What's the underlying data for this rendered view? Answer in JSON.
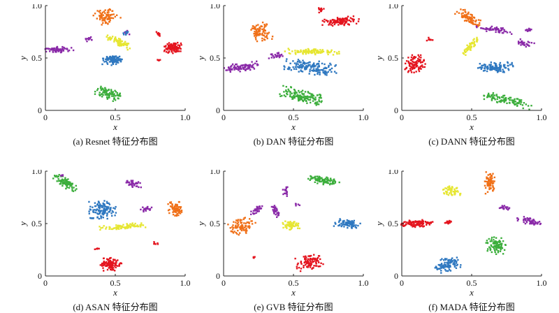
{
  "colors": {
    "red": "#e4141e",
    "orange": "#f07018",
    "purple": "#8a2aa8",
    "blue": "#2f78c0",
    "yellow": "#e6e632",
    "green": "#3cae3c"
  },
  "chart_data": [
    {
      "type": "scatter",
      "title": "",
      "caption": "(a) Resnet 特征分布图",
      "xlabel": "x",
      "ylabel": "y",
      "xlim": [
        0,
        1.0
      ],
      "ylim": [
        0,
        1.0
      ],
      "xticks": [
        "0",
        "0.5",
        "1.0"
      ],
      "yticks": [
        "0",
        "0.5",
        "1.0"
      ],
      "clusters": [
        {
          "color": "red",
          "cx": 0.91,
          "cy": 0.6,
          "rx": 0.06,
          "ry": 0.05,
          "rot": 0,
          "n": 110
        },
        {
          "color": "red",
          "cx": 0.81,
          "cy": 0.73,
          "rx": 0.02,
          "ry": 0.02,
          "rot": 0,
          "n": 12
        },
        {
          "color": "red",
          "cx": 0.81,
          "cy": 0.48,
          "rx": 0.01,
          "ry": 0.01,
          "rot": 0,
          "n": 6
        },
        {
          "color": "orange",
          "cx": 0.43,
          "cy": 0.9,
          "rx": 0.08,
          "ry": 0.08,
          "rot": 0.5,
          "n": 80
        },
        {
          "color": "purple",
          "cx": 0.1,
          "cy": 0.58,
          "rx": 0.1,
          "ry": 0.025,
          "rot": 0,
          "n": 70
        },
        {
          "color": "purple",
          "cx": 0.31,
          "cy": 0.68,
          "rx": 0.03,
          "ry": 0.02,
          "rot": 0,
          "n": 14
        },
        {
          "color": "purple",
          "cx": 0.58,
          "cy": 0.74,
          "rx": 0.02,
          "ry": 0.02,
          "rot": 0,
          "n": 10
        },
        {
          "color": "blue",
          "cx": 0.48,
          "cy": 0.48,
          "rx": 0.07,
          "ry": 0.045,
          "rot": 0,
          "n": 95
        },
        {
          "color": "blue",
          "cx": 0.57,
          "cy": 0.74,
          "rx": 0.02,
          "ry": 0.02,
          "rot": 0,
          "n": 8
        },
        {
          "color": "yellow",
          "cx": 0.53,
          "cy": 0.65,
          "rx": 0.1,
          "ry": 0.03,
          "rot": -0.55,
          "n": 70
        },
        {
          "color": "green",
          "cx": 0.45,
          "cy": 0.16,
          "rx": 0.09,
          "ry": 0.045,
          "rot": -0.45,
          "n": 95
        }
      ]
    },
    {
      "type": "scatter",
      "title": "",
      "caption": "(b) DAN 特征分布图",
      "xlabel": "x",
      "ylabel": "y",
      "xlim": [
        0,
        1.0
      ],
      "ylim": [
        0,
        1.0
      ],
      "xticks": [
        "0",
        "0.5",
        "1.0"
      ],
      "yticks": [
        "0",
        "0.5",
        "1.0"
      ],
      "clusters": [
        {
          "color": "red",
          "cx": 0.83,
          "cy": 0.85,
          "rx": 0.13,
          "ry": 0.04,
          "rot": 0.1,
          "n": 110
        },
        {
          "color": "red",
          "cx": 0.7,
          "cy": 0.96,
          "rx": 0.025,
          "ry": 0.025,
          "rot": 0,
          "n": 12
        },
        {
          "color": "orange",
          "cx": 0.27,
          "cy": 0.75,
          "rx": 0.07,
          "ry": 0.08,
          "rot": 0.3,
          "n": 85
        },
        {
          "color": "purple",
          "cx": 0.12,
          "cy": 0.41,
          "rx": 0.12,
          "ry": 0.04,
          "rot": 0.15,
          "n": 90
        },
        {
          "color": "purple",
          "cx": 0.37,
          "cy": 0.52,
          "rx": 0.05,
          "ry": 0.025,
          "rot": 0.3,
          "n": 25
        },
        {
          "color": "blue",
          "cx": 0.63,
          "cy": 0.41,
          "rx": 0.18,
          "ry": 0.06,
          "rot": -0.15,
          "n": 150
        },
        {
          "color": "yellow",
          "cx": 0.63,
          "cy": 0.56,
          "rx": 0.18,
          "ry": 0.025,
          "rot": -0.03,
          "n": 100
        },
        {
          "color": "green",
          "cx": 0.56,
          "cy": 0.13,
          "rx": 0.15,
          "ry": 0.06,
          "rot": -0.3,
          "n": 140
        }
      ]
    },
    {
      "type": "scatter",
      "title": "",
      "caption": "(c) DANN 特征分布图",
      "xlabel": "x",
      "ylabel": "y",
      "xlim": [
        0,
        1.0
      ],
      "ylim": [
        0,
        1.0
      ],
      "xticks": [
        "0",
        "0.5",
        "1.0"
      ],
      "yticks": [
        "0",
        "0.5",
        "1.0"
      ],
      "clusters": [
        {
          "color": "red",
          "cx": 0.1,
          "cy": 0.44,
          "rx": 0.07,
          "ry": 0.08,
          "rot": 0,
          "n": 95
        },
        {
          "color": "red",
          "cx": 0.2,
          "cy": 0.68,
          "rx": 0.02,
          "ry": 0.015,
          "rot": 0,
          "n": 10
        },
        {
          "color": "orange",
          "cx": 0.48,
          "cy": 0.88,
          "rx": 0.1,
          "ry": 0.04,
          "rot": -0.75,
          "n": 80
        },
        {
          "color": "purple",
          "cx": 0.67,
          "cy": 0.77,
          "rx": 0.14,
          "ry": 0.025,
          "rot": -0.2,
          "n": 60
        },
        {
          "color": "purple",
          "cx": 0.88,
          "cy": 0.64,
          "rx": 0.06,
          "ry": 0.025,
          "rot": -0.4,
          "n": 30
        },
        {
          "color": "purple",
          "cx": 0.91,
          "cy": 0.77,
          "rx": 0.03,
          "ry": 0.02,
          "rot": 0,
          "n": 12
        },
        {
          "color": "blue",
          "cx": 0.67,
          "cy": 0.41,
          "rx": 0.12,
          "ry": 0.05,
          "rot": 0,
          "n": 110
        },
        {
          "color": "yellow",
          "cx": 0.49,
          "cy": 0.61,
          "rx": 0.09,
          "ry": 0.025,
          "rot": 1.0,
          "n": 55
        },
        {
          "color": "green",
          "cx": 0.75,
          "cy": 0.1,
          "rx": 0.17,
          "ry": 0.04,
          "rot": -0.3,
          "n": 110
        }
      ]
    },
    {
      "type": "scatter",
      "title": "",
      "caption": "(d) ASAN 特征分布图",
      "xlabel": "x",
      "ylabel": "y",
      "xlim": [
        0,
        1.0
      ],
      "ylim": [
        0,
        1.0
      ],
      "xticks": [
        "0",
        "0.5",
        "1.0"
      ],
      "yticks": [
        "0",
        "0.5",
        "1.0"
      ],
      "clusters": [
        {
          "color": "red",
          "cx": 0.47,
          "cy": 0.11,
          "rx": 0.07,
          "ry": 0.06,
          "rot": 0,
          "n": 100
        },
        {
          "color": "red",
          "cx": 0.37,
          "cy": 0.26,
          "rx": 0.015,
          "ry": 0.015,
          "rot": 0,
          "n": 6
        },
        {
          "color": "red",
          "cx": 0.79,
          "cy": 0.31,
          "rx": 0.015,
          "ry": 0.015,
          "rot": 0,
          "n": 6
        },
        {
          "color": "green",
          "cx": 0.14,
          "cy": 0.89,
          "rx": 0.1,
          "ry": 0.04,
          "rot": -0.7,
          "n": 90
        },
        {
          "color": "orange",
          "cx": 0.93,
          "cy": 0.64,
          "rx": 0.05,
          "ry": 0.07,
          "rot": 0.2,
          "n": 75
        },
        {
          "color": "purple",
          "cx": 0.63,
          "cy": 0.88,
          "rx": 0.06,
          "ry": 0.03,
          "rot": -0.4,
          "n": 35
        },
        {
          "color": "purple",
          "cx": 0.72,
          "cy": 0.64,
          "rx": 0.04,
          "ry": 0.025,
          "rot": 0,
          "n": 20
        },
        {
          "color": "purple",
          "cx": 0.12,
          "cy": 0.96,
          "rx": 0.015,
          "ry": 0.01,
          "rot": 0,
          "n": 5
        },
        {
          "color": "blue",
          "cx": 0.41,
          "cy": 0.63,
          "rx": 0.09,
          "ry": 0.08,
          "rot": 0,
          "n": 120
        },
        {
          "color": "yellow",
          "cx": 0.55,
          "cy": 0.47,
          "rx": 0.15,
          "ry": 0.025,
          "rot": 0.1,
          "n": 80
        }
      ]
    },
    {
      "type": "scatter",
      "title": "",
      "caption": "(e) GVB 特征分布图",
      "xlabel": "x",
      "ylabel": "y",
      "xlim": [
        0,
        1.0
      ],
      "ylim": [
        0,
        1.0
      ],
      "xticks": [
        "0",
        "0.5",
        "1.0"
      ],
      "yticks": [
        "0",
        "0.5",
        "1.0"
      ],
      "clusters": [
        {
          "color": "green",
          "cx": 0.72,
          "cy": 0.91,
          "rx": 0.11,
          "ry": 0.04,
          "rot": -0.2,
          "n": 90
        },
        {
          "color": "orange",
          "cx": 0.13,
          "cy": 0.48,
          "rx": 0.09,
          "ry": 0.07,
          "rot": 0.6,
          "n": 85
        },
        {
          "color": "purple",
          "cx": 0.24,
          "cy": 0.64,
          "rx": 0.07,
          "ry": 0.025,
          "rot": 1.0,
          "n": 30
        },
        {
          "color": "purple",
          "cx": 0.37,
          "cy": 0.62,
          "rx": 0.02,
          "ry": 0.07,
          "rot": 0.2,
          "n": 30
        },
        {
          "color": "purple",
          "cx": 0.44,
          "cy": 0.81,
          "rx": 0.02,
          "ry": 0.05,
          "rot": 0,
          "n": 18
        },
        {
          "color": "purple",
          "cx": 0.53,
          "cy": 0.68,
          "rx": 0.015,
          "ry": 0.01,
          "rot": 0,
          "n": 5
        },
        {
          "color": "blue",
          "cx": 0.89,
          "cy": 0.5,
          "rx": 0.09,
          "ry": 0.04,
          "rot": -0.2,
          "n": 80
        },
        {
          "color": "yellow",
          "cx": 0.48,
          "cy": 0.49,
          "rx": 0.06,
          "ry": 0.045,
          "rot": 0,
          "n": 55
        },
        {
          "color": "red",
          "cx": 0.61,
          "cy": 0.13,
          "rx": 0.09,
          "ry": 0.06,
          "rot": 0.3,
          "n": 95
        },
        {
          "color": "red",
          "cx": 0.22,
          "cy": 0.18,
          "rx": 0.015,
          "ry": 0.015,
          "rot": 0,
          "n": 6
        }
      ]
    },
    {
      "type": "scatter",
      "title": "",
      "caption": "(f) MADA 特征分布图",
      "xlabel": "x",
      "ylabel": "y",
      "xlim": [
        0,
        1.0
      ],
      "ylim": [
        0,
        1.0
      ],
      "xticks": [
        "0",
        "0.5",
        "1.0"
      ],
      "yticks": [
        "0",
        "0.5",
        "1.0"
      ],
      "clusters": [
        {
          "color": "red",
          "cx": 0.11,
          "cy": 0.5,
          "rx": 0.11,
          "ry": 0.035,
          "rot": 0,
          "n": 100
        },
        {
          "color": "red",
          "cx": 0.34,
          "cy": 0.51,
          "rx": 0.03,
          "ry": 0.02,
          "rot": 0,
          "n": 18
        },
        {
          "color": "yellow",
          "cx": 0.36,
          "cy": 0.81,
          "rx": 0.06,
          "ry": 0.045,
          "rot": 0,
          "n": 55
        },
        {
          "color": "orange",
          "cx": 0.63,
          "cy": 0.89,
          "rx": 0.035,
          "ry": 0.1,
          "rot": 0,
          "n": 75
        },
        {
          "color": "purple",
          "cx": 0.73,
          "cy": 0.65,
          "rx": 0.04,
          "ry": 0.025,
          "rot": 0,
          "n": 20
        },
        {
          "color": "purple",
          "cx": 0.92,
          "cy": 0.52,
          "rx": 0.09,
          "ry": 0.03,
          "rot": -0.3,
          "n": 55
        },
        {
          "color": "green",
          "cx": 0.68,
          "cy": 0.29,
          "rx": 0.07,
          "ry": 0.08,
          "rot": 0,
          "n": 90
        },
        {
          "color": "blue",
          "cx": 0.33,
          "cy": 0.11,
          "rx": 0.09,
          "ry": 0.06,
          "rot": 0.4,
          "n": 100
        }
      ]
    }
  ]
}
